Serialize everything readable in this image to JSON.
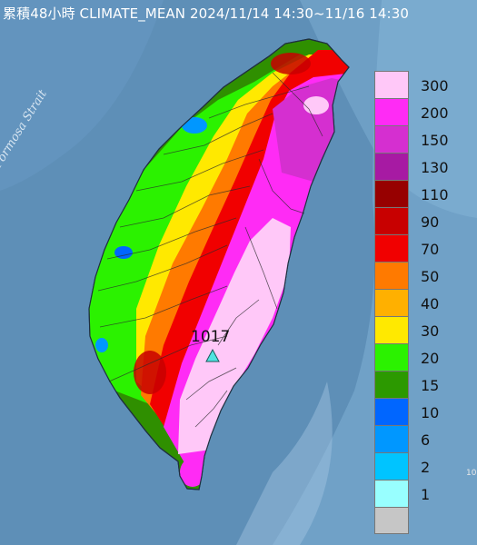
{
  "title": "累積48小時 CLIMATE_MEAN 2024/11/14 14:30~11/16 14:30",
  "map": {
    "water_color": "#5e8fb7",
    "strait_label": "Formosa Strait",
    "edge_label": "10",
    "peak_marker": {
      "value": "1017",
      "icon": "triangle-icon",
      "color": "#4fe3e0"
    }
  },
  "legend": {
    "colors": [
      "#ffc8f8",
      "#ff2bf5",
      "#d52fd0",
      "#a71aa3",
      "#970000",
      "#c80000",
      "#f10000",
      "#ff7a00",
      "#ffb000",
      "#ffe900",
      "#2bf200",
      "#2c9900",
      "#0066ff",
      "#0097ff",
      "#00c4ff",
      "#98ffff",
      "#c6c6c6"
    ],
    "labels": [
      "300",
      "200",
      "150",
      "130",
      "110",
      "90",
      "70",
      "50",
      "40",
      "30",
      "20",
      "15",
      "10",
      "6",
      "2",
      "1"
    ]
  }
}
